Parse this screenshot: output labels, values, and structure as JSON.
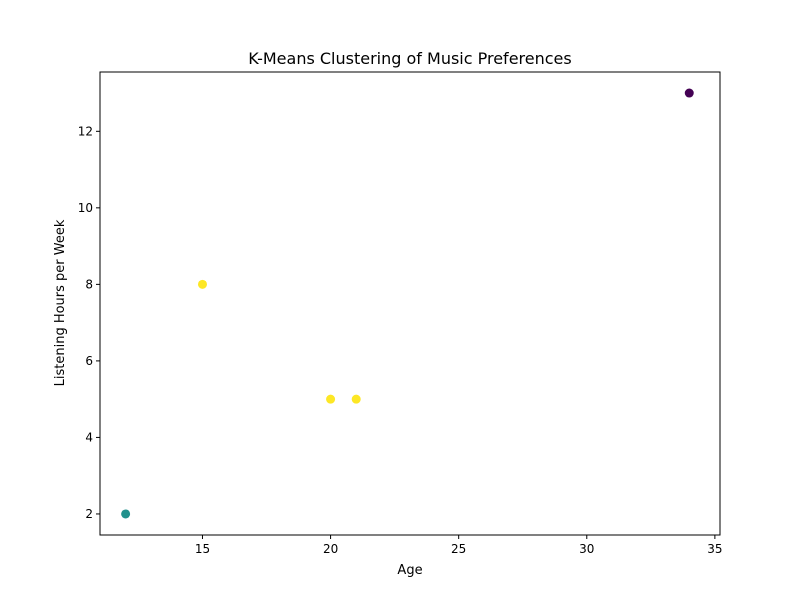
{
  "chart_data": {
    "type": "scatter",
    "title": "K-Means Clustering of Music Preferences",
    "xlabel": "Age",
    "ylabel": "Listening Hours per Week",
    "xlim": [
      11.0,
      35.2
    ],
    "ylim": [
      1.45,
      13.55
    ],
    "xticks": [
      15,
      20,
      25,
      30,
      35
    ],
    "yticks": [
      2,
      4,
      6,
      8,
      10,
      12
    ],
    "grid": false,
    "legend": "none",
    "points": [
      {
        "x": 34,
        "y": 13,
        "cluster": 0,
        "color": "#440154"
      },
      {
        "x": 12,
        "y": 2,
        "cluster": 1,
        "color": "#21918c"
      },
      {
        "x": 15,
        "y": 8,
        "cluster": 2,
        "color": "#fde725"
      },
      {
        "x": 20,
        "y": 5,
        "cluster": 2,
        "color": "#fde725"
      },
      {
        "x": 21,
        "y": 5,
        "cluster": 2,
        "color": "#fde725"
      }
    ]
  }
}
